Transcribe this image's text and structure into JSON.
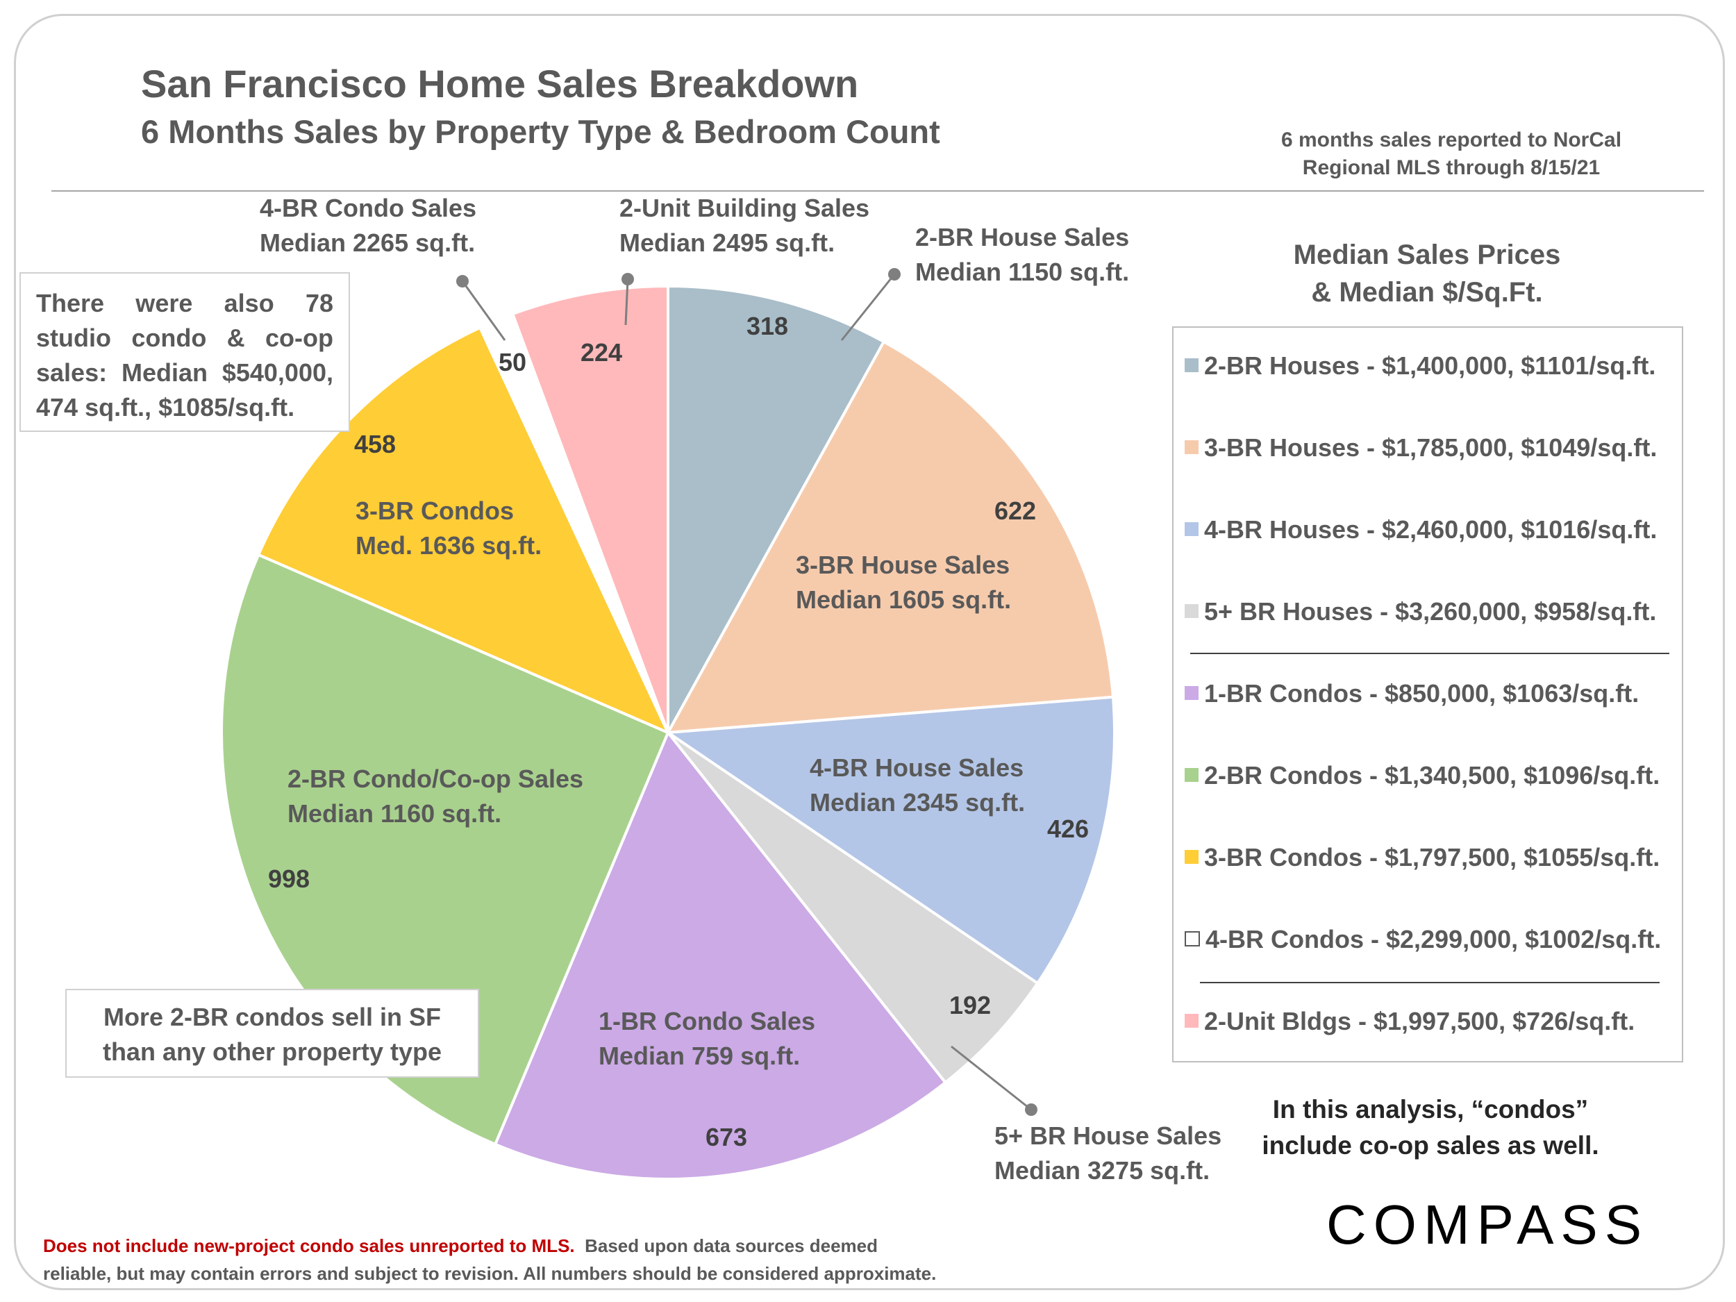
{
  "title": "San Francisco Home Sales Breakdown",
  "subtitle": "6 Months Sales by Property Type & Bedroom Count",
  "source_note": [
    "6 months sales reported to NorCal",
    "Regional MLS through 8/15/21"
  ],
  "studio_note": [
    "There were also 78",
    "studio condo & co-op",
    "sales: Median $540,000,",
    "474 sq.ft., $1085/sq.ft."
  ],
  "condo_callout": [
    "More 2-BR condos sell in SF",
    "than any other property type"
  ],
  "legend_heading": [
    "Median Sales Prices",
    "& Median $/Sq.Ft."
  ],
  "legend": [
    {
      "label": "2-BR Houses - $1,400,000, $1101/sq.ft.",
      "color": "#a9bec9"
    },
    {
      "label": "3-BR Houses - $1,785,000, $1049/sq.ft.",
      "color": "#f6cbac"
    },
    {
      "label": "4-BR Houses - $2,460,000, $1016/sq.ft.",
      "color": "#b4c6e7"
    },
    {
      "label": "5+ BR Houses - $3,260,000, $958/sq.ft.",
      "color": "#d9d9d9"
    },
    {
      "label": "1-BR Condos - $850,000, $1063/sq.ft.",
      "color": "#cbaae6"
    },
    {
      "label": "2-BR Condos - $1,340,500, $1096/sq.ft.",
      "color": "#a9d18e"
    },
    {
      "label": "3-BR Condos - $1,797,500, $1055/sq.ft.",
      "color": "#ffcd36"
    },
    {
      "label": "4-BR Condos - $2,299,000, $1002/sq.ft.",
      "color": "#ffffff"
    },
    {
      "label": "2-Unit Bldgs - $1,997,500, $726/sq.ft.",
      "color": "#ffb9bb"
    }
  ],
  "condo_note": [
    "In this analysis, “condos”",
    "include co-op sales as well."
  ],
  "logo": "COMPASS",
  "footer": {
    "red": "Does not include new-project condo sales unreported to MLS.",
    "line1_rest": "Based upon data sources deemed",
    "line2": "reliable, but may contain errors and subject to revision. All numbers should be considered approximate."
  },
  "chart_data": {
    "type": "pie",
    "title": "San Francisco Home Sales Breakdown",
    "slices": [
      {
        "name": "2-BR House Sales",
        "value": 318,
        "color": "#a9bec9",
        "label": [
          "2-BR House Sales",
          "Median 1150 sq.ft."
        ]
      },
      {
        "name": "3-BR House Sales",
        "value": 622,
        "color": "#f6cbac",
        "label": [
          "3-BR House Sales",
          "Median 1605 sq.ft."
        ]
      },
      {
        "name": "4-BR House Sales",
        "value": 426,
        "color": "#b4c6e7",
        "label": [
          "4-BR House Sales",
          "Median 2345 sq.ft."
        ]
      },
      {
        "name": "5+ BR House Sales",
        "value": 192,
        "color": "#d9d9d9",
        "label": [
          "5+ BR House Sales",
          "Median 3275 sq.ft."
        ]
      },
      {
        "name": "1-BR Condo Sales",
        "value": 673,
        "color": "#cbaae6",
        "label": [
          "1-BR Condo Sales",
          "Median 759 sq.ft."
        ]
      },
      {
        "name": "2-BR Condo/Co-op Sales",
        "value": 998,
        "color": "#a9d18e",
        "label": [
          "2-BR Condo/Co-op Sales",
          "Median 1160 sq.ft."
        ]
      },
      {
        "name": "3-BR Condos",
        "value": 458,
        "color": "#ffcd36",
        "label": [
          "3-BR Condos",
          "Med. 1636 sq.ft."
        ]
      },
      {
        "name": "4-BR Condo Sales",
        "value": 50,
        "color": "#ffffff",
        "label": [
          "4-BR Condo Sales",
          "Median 2265 sq.ft."
        ]
      },
      {
        "name": "2-Unit Building Sales",
        "value": 224,
        "color": "#ffb9bb",
        "label": [
          "2-Unit Building Sales",
          "Median 2495 sq.ft."
        ]
      }
    ]
  }
}
